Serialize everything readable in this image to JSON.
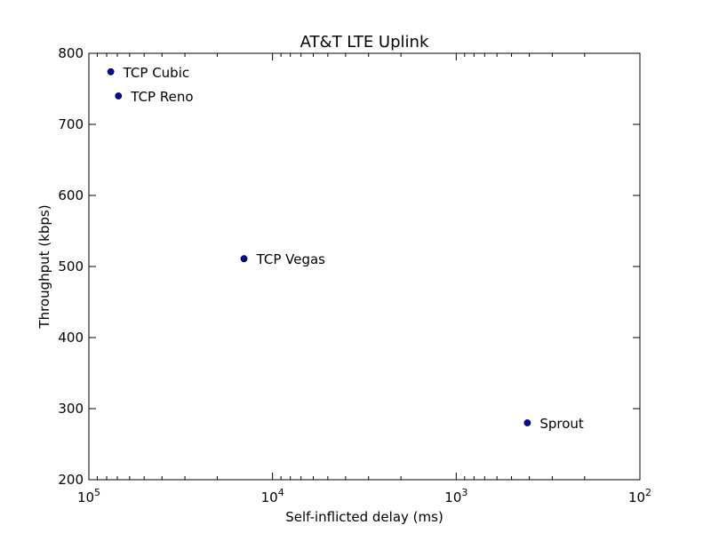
{
  "chart_data": {
    "type": "scatter",
    "title": "AT&T LTE Uplink",
    "xlabel": "Self-inflicted delay (ms)",
    "ylabel": "Throughput (kbps)",
    "x_scale": "log",
    "x_reversed": true,
    "xlim": [
      100000,
      100
    ],
    "ylim": [
      200,
      800
    ],
    "grid": false,
    "x_ticks": [
      {
        "base": "10",
        "exp": "5",
        "value": 100000
      },
      {
        "base": "10",
        "exp": "4",
        "value": 10000
      },
      {
        "base": "10",
        "exp": "3",
        "value": 1000
      },
      {
        "base": "10",
        "exp": "2",
        "value": 100
      }
    ],
    "y_ticks": [
      "200",
      "300",
      "400",
      "500",
      "600",
      "700",
      "800"
    ],
    "marker_color": "#0000bf",
    "points": [
      {
        "label": "TCP Cubic",
        "x": 76000,
        "y": 774
      },
      {
        "label": "TCP Reno",
        "x": 69000,
        "y": 740
      },
      {
        "label": "TCP Vegas",
        "x": 14300,
        "y": 511
      },
      {
        "label": "Sprout",
        "x": 410,
        "y": 280
      }
    ]
  }
}
